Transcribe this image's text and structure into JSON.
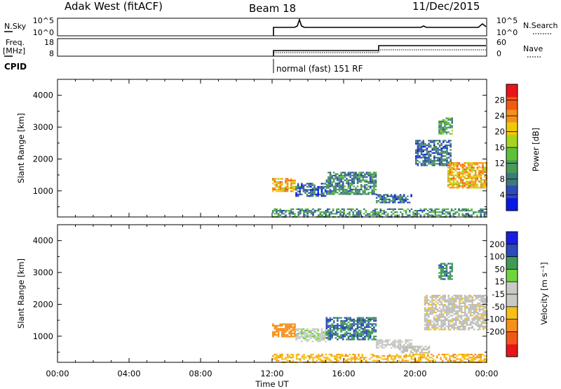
{
  "header": {
    "station": "Adak West (fitACF)",
    "beam": "Beam 18",
    "date": "11/Dec/2015"
  },
  "sky_panel": {
    "left_label": "N.Sky",
    "left_ticks": [
      "10^5",
      "10^0"
    ],
    "right_ticks": [
      "10^5",
      "10^0"
    ],
    "right_label": "N.Search"
  },
  "freq_panel": {
    "left_label_1": "Freq.",
    "left_label_2": "[MHz]",
    "left_ticks": [
      "18",
      "8"
    ],
    "right_ticks": [
      "60",
      "0"
    ],
    "right_label": "Nave"
  },
  "cpid": {
    "label": "CPID",
    "mode_text": "normal (fast) 151 RF"
  },
  "colors": {
    "power_scale": [
      "#0a18e6",
      "#2e49b8",
      "#3f7a7a",
      "#4b9a57",
      "#5dc23a",
      "#a8d41f",
      "#f0c808",
      "#f5901a",
      "#f25a12",
      "#e8151a"
    ],
    "velocity_scale": [
      "#e8151a",
      "#f0581a",
      "#f5901a",
      "#f7c016",
      "#c9c9c6",
      "#c9c9c6",
      "#6ed63c",
      "#3f9a55",
      "#2e49b8",
      "#1a1ee0"
    ],
    "ground_scatter": "#bdbdb8"
  },
  "chart_data": [
    {
      "type": "heatmap",
      "title": "",
      "xlabel": "",
      "ylabel": "Slant Range [km]",
      "x_range_hours": [
        0,
        24
      ],
      "ylim": [
        180,
        4500
      ],
      "ytick_labels": [
        "1000",
        "2000",
        "3000",
        "4000"
      ],
      "colorbar": {
        "label": "Power [dB]",
        "tick_labels": [
          "4",
          "8",
          "12",
          "16",
          "20",
          "24",
          "28"
        ],
        "range": [
          0,
          32
        ]
      },
      "echo_regions": [
        {
          "t_start": 12.0,
          "t_end": 13.3,
          "r_start": 1000,
          "r_end": 1400,
          "value": 22
        },
        {
          "t_start": 13.3,
          "t_end": 15.0,
          "r_start": 850,
          "r_end": 1250,
          "value": 6
        },
        {
          "t_start": 15.0,
          "t_end": 17.8,
          "r_start": 900,
          "r_end": 1600,
          "value": 9
        },
        {
          "t_start": 17.8,
          "t_end": 19.8,
          "r_start": 650,
          "r_end": 900,
          "value": 7
        },
        {
          "t_start": 20.0,
          "t_end": 22.0,
          "r_start": 1800,
          "r_end": 2600,
          "value": 7
        },
        {
          "t_start": 21.3,
          "t_end": 22.1,
          "r_start": 2800,
          "r_end": 3300,
          "value": 12
        },
        {
          "t_start": 21.8,
          "t_end": 24.0,
          "r_start": 1100,
          "r_end": 1900,
          "value": 22
        },
        {
          "t_start": 12.0,
          "t_end": 24.0,
          "r_start": 180,
          "r_end": 450,
          "value": 10
        }
      ]
    },
    {
      "type": "heatmap",
      "title": "",
      "xlabel": "Time UT",
      "ylabel": "Slant Range [km]",
      "x_range_hours": [
        0,
        24
      ],
      "ylim": [
        180,
        4500
      ],
      "ytick_labels": [
        "1000",
        "2000",
        "3000",
        "4000"
      ],
      "xtick_labels": [
        "00:00",
        "04:00",
        "08:00",
        "12:00",
        "16:00",
        "20:00",
        "00:00"
      ],
      "colorbar": {
        "label": "Velocity [m s⁻¹]",
        "tick_labels": [
          "200",
          "100",
          "50",
          "15",
          "-15",
          "-50",
          "-100",
          "-200"
        ]
      },
      "echo_regions": [
        {
          "t_start": 12.0,
          "t_end": 13.3,
          "r_start": 1000,
          "r_end": 1400,
          "value": -80
        },
        {
          "t_start": 13.3,
          "t_end": 15.0,
          "r_start": 850,
          "r_end": 1250,
          "value": 40
        },
        {
          "t_start": 15.0,
          "t_end": 17.8,
          "r_start": 900,
          "r_end": 1600,
          "value": 200
        },
        {
          "t_start": 17.8,
          "t_end": 19.8,
          "r_start": 650,
          "r_end": 900,
          "value": 30
        },
        {
          "t_start": 19.0,
          "t_end": 20.8,
          "r_start": 500,
          "r_end": 700,
          "value": 0
        },
        {
          "t_start": 20.5,
          "t_end": 24.0,
          "r_start": 1200,
          "r_end": 2300,
          "value": 0
        },
        {
          "t_start": 21.3,
          "t_end": 22.1,
          "r_start": 2800,
          "r_end": 3300,
          "value": 180
        },
        {
          "t_start": 12.0,
          "t_end": 24.0,
          "r_start": 180,
          "r_end": 450,
          "value": -40
        }
      ]
    }
  ]
}
